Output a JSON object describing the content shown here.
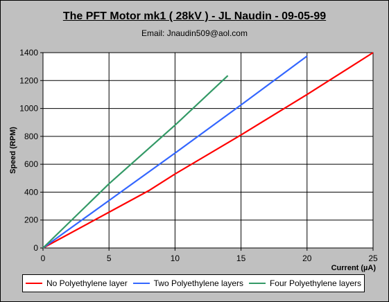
{
  "chart_data": {
    "type": "line",
    "title": "The PFT Motor mk1 ( 28kV ) -  JL Naudin - 09-05-99",
    "subtitle": "Email: Jnaudin509@aol.com",
    "xlabel": "Current (µA)",
    "ylabel": "Speed (RPM)",
    "xlim": [
      0,
      25
    ],
    "ylim": [
      0,
      1400
    ],
    "xticks": [
      "0",
      "5",
      "10",
      "15",
      "20",
      "25"
    ],
    "yticks": [
      "0",
      "200",
      "400",
      "600",
      "800",
      "1000",
      "1200",
      "1400"
    ],
    "grid": true,
    "legend_position": "bottom",
    "series": [
      {
        "name": "No Polyethylene layer",
        "color": "#ff0000",
        "x": [
          0,
          8,
          10,
          15,
          20,
          25
        ],
        "y": [
          0,
          410,
          530,
          810,
          1100,
          1400
        ]
      },
      {
        "name": "Two Polyethylene layers",
        "color": "#3366ff",
        "x": [
          0,
          5,
          10,
          15,
          20
        ],
        "y": [
          0,
          340,
          680,
          1025,
          1375
        ]
      },
      {
        "name": "Four Polyethylene layers",
        "color": "#339966",
        "x": [
          0,
          5,
          10,
          14
        ],
        "y": [
          0,
          460,
          880,
          1235
        ]
      }
    ]
  }
}
